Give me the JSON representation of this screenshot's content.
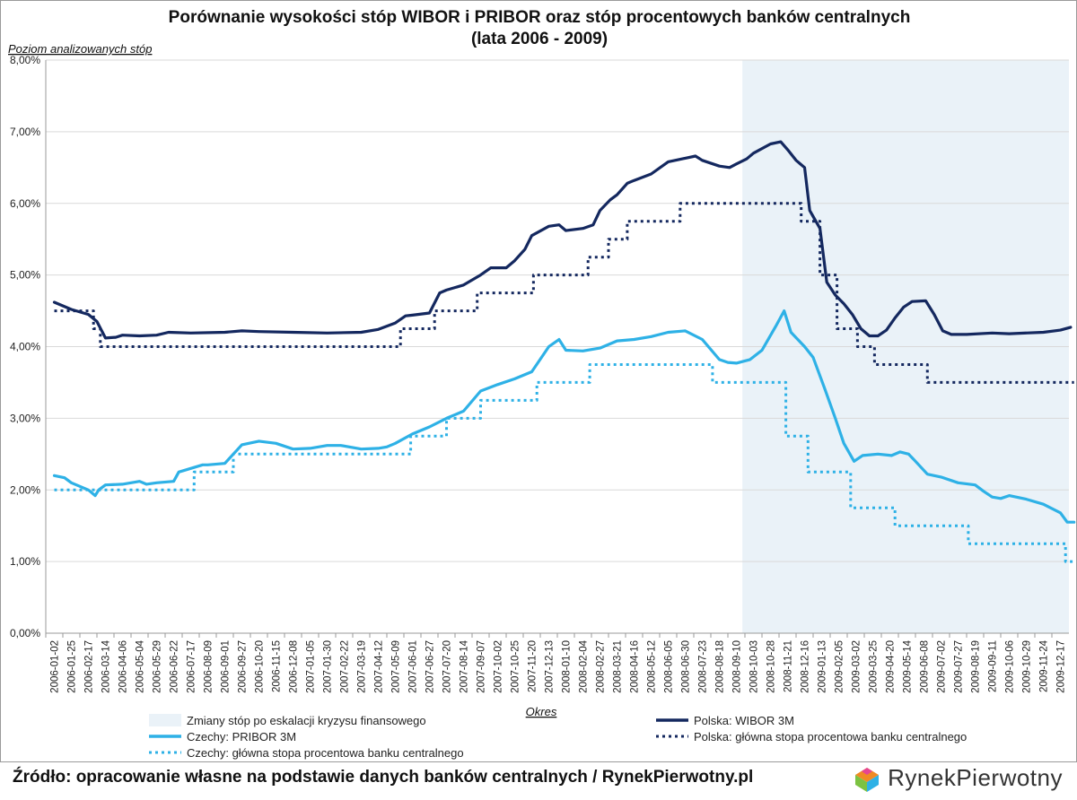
{
  "colors": {
    "wibor": "#14285f",
    "pribor": "#2eb1e6",
    "crisis": "#eaf2f8",
    "grid": "#d9d9d9",
    "axis": "#9a9a9a"
  },
  "chart_data": {
    "type": "line",
    "title": [
      "Porównanie wysokości stóp WIBOR i PRIBOR oraz stóp procentowych banków centralnych",
      "(lata 2006 - 2009)"
    ],
    "ylabel": "Poziom analizowanych stóp",
    "xlabel": "Okres",
    "ylim": [
      0,
      8
    ],
    "yticks": [
      "0,00%",
      "1,00%",
      "2,00%",
      "3,00%",
      "4,00%",
      "5,00%",
      "6,00%",
      "7,00%",
      "8,00%"
    ],
    "categories": [
      "2006-01-02",
      "2006-01-25",
      "2006-02-17",
      "2006-03-14",
      "2006-04-06",
      "2006-05-04",
      "2006-05-29",
      "2006-06-22",
      "2006-07-17",
      "2006-08-09",
      "2006-09-01",
      "2006-09-27",
      "2006-10-20",
      "2006-11-15",
      "2006-12-08",
      "2007-01-05",
      "2007-01-30",
      "2007-02-22",
      "2007-03-19",
      "2007-04-12",
      "2007-05-09",
      "2007-06-01",
      "2007-06-27",
      "2007-07-20",
      "2007-08-14",
      "2007-09-07",
      "2007-10-02",
      "2007-10-25",
      "2007-11-20",
      "2007-12-13",
      "2008-01-10",
      "2008-02-04",
      "2008-02-27",
      "2008-03-21",
      "2008-04-16",
      "2008-05-12",
      "2008-06-05",
      "2008-06-30",
      "2008-07-23",
      "2008-08-18",
      "2008-09-10",
      "2008-10-03",
      "2008-10-28",
      "2008-11-21",
      "2008-12-16",
      "2009-01-13",
      "2009-02-05",
      "2009-03-02",
      "2009-03-25",
      "2009-04-20",
      "2009-05-14",
      "2009-06-08",
      "2009-07-02",
      "2009-07-27",
      "2009-08-19",
      "2009-09-11",
      "2009-10-06",
      "2009-10-29",
      "2009-11-24",
      "2009-12-17"
    ],
    "shaded_region": {
      "label": "Zmiany stóp po eskalacji kryzysu finansowego",
      "from": "2008-09-15",
      "to": "2009-12-31"
    },
    "series": [
      {
        "name": "Polska: WIBOR 3M",
        "style": "solid",
        "color": "wibor",
        "points": [
          [
            0,
            4.62
          ],
          [
            1,
            4.52
          ],
          [
            2,
            4.45
          ],
          [
            2.5,
            4.35
          ],
          [
            3,
            4.12
          ],
          [
            3.6,
            4.13
          ],
          [
            4,
            4.16
          ],
          [
            5,
            4.15
          ],
          [
            6,
            4.16
          ],
          [
            6.7,
            4.2
          ],
          [
            8,
            4.19
          ],
          [
            10,
            4.2
          ],
          [
            11,
            4.22
          ],
          [
            12,
            4.21
          ],
          [
            14,
            4.2
          ],
          [
            16,
            4.19
          ],
          [
            18,
            4.2
          ],
          [
            19,
            4.24
          ],
          [
            20,
            4.33
          ],
          [
            20.6,
            4.43
          ],
          [
            21,
            4.44
          ],
          [
            22,
            4.47
          ],
          [
            22.6,
            4.75
          ],
          [
            23,
            4.79
          ],
          [
            24,
            4.86
          ],
          [
            25,
            5.0
          ],
          [
            25.6,
            5.1
          ],
          [
            26,
            5.1
          ],
          [
            26.5,
            5.1
          ],
          [
            27,
            5.2
          ],
          [
            27.6,
            5.36
          ],
          [
            28,
            5.55
          ],
          [
            29,
            5.68
          ],
          [
            29.6,
            5.7
          ],
          [
            30,
            5.62
          ],
          [
            31,
            5.65
          ],
          [
            31.6,
            5.7
          ],
          [
            32,
            5.9
          ],
          [
            32.6,
            6.05
          ],
          [
            33,
            6.12
          ],
          [
            33.6,
            6.28
          ],
          [
            34,
            6.32
          ],
          [
            35,
            6.41
          ],
          [
            36,
            6.58
          ],
          [
            37,
            6.63
          ],
          [
            37.6,
            6.66
          ],
          [
            38,
            6.6
          ],
          [
            39,
            6.52
          ],
          [
            39.6,
            6.5
          ],
          [
            40,
            6.55
          ],
          [
            40.6,
            6.62
          ],
          [
            41,
            6.7
          ],
          [
            42,
            6.83
          ],
          [
            42.6,
            6.86
          ],
          [
            43,
            6.75
          ],
          [
            43.5,
            6.6
          ],
          [
            44,
            6.5
          ],
          [
            44.3,
            5.9
          ],
          [
            44.9,
            5.65
          ],
          [
            45.3,
            4.9
          ],
          [
            45.8,
            4.72
          ],
          [
            46.3,
            4.6
          ],
          [
            46.8,
            4.45
          ],
          [
            47.3,
            4.25
          ],
          [
            47.8,
            4.15
          ],
          [
            48.3,
            4.15
          ],
          [
            48.8,
            4.23
          ],
          [
            49.3,
            4.4
          ],
          [
            49.8,
            4.55
          ],
          [
            50.3,
            4.63
          ],
          [
            51.1,
            4.64
          ],
          [
            51.6,
            4.45
          ],
          [
            52.1,
            4.22
          ],
          [
            52.6,
            4.17
          ],
          [
            53.5,
            4.17
          ],
          [
            55,
            4.19
          ],
          [
            56,
            4.18
          ],
          [
            58,
            4.2
          ],
          [
            59,
            4.23
          ],
          [
            59.6,
            4.27
          ]
        ]
      },
      {
        "name": "Polska: główna stopa procentowa banku centralnego",
        "style": "dotted",
        "color": "wibor",
        "points": [
          [
            0,
            4.5
          ],
          [
            2.3,
            4.5
          ],
          [
            2.3,
            4.25
          ],
          [
            2.7,
            4.25
          ],
          [
            2.7,
            4.0
          ],
          [
            20.3,
            4.0
          ],
          [
            20.3,
            4.25
          ],
          [
            22.3,
            4.25
          ],
          [
            22.3,
            4.5
          ],
          [
            24.8,
            4.5
          ],
          [
            24.8,
            4.75
          ],
          [
            28.1,
            4.75
          ],
          [
            28.1,
            5.0
          ],
          [
            31.3,
            5.0
          ],
          [
            31.3,
            5.25
          ],
          [
            32.5,
            5.25
          ],
          [
            32.5,
            5.5
          ],
          [
            33.6,
            5.5
          ],
          [
            33.6,
            5.75
          ],
          [
            36.7,
            5.75
          ],
          [
            36.7,
            6.0
          ],
          [
            43.8,
            6.0
          ],
          [
            43.8,
            5.75
          ],
          [
            44.9,
            5.75
          ],
          [
            44.9,
            5.0
          ],
          [
            45.9,
            5.0
          ],
          [
            45.9,
            4.25
          ],
          [
            47.1,
            4.25
          ],
          [
            47.1,
            4.0
          ],
          [
            48.1,
            4.0
          ],
          [
            48.1,
            3.75
          ],
          [
            51.2,
            3.75
          ],
          [
            51.2,
            3.5
          ],
          [
            59.8,
            3.5
          ]
        ]
      },
      {
        "name": "Czechy: PRIBOR 3M",
        "style": "solid",
        "color": "pribor",
        "points": [
          [
            0,
            2.2
          ],
          [
            0.6,
            2.17
          ],
          [
            1,
            2.1
          ],
          [
            1.5,
            2.05
          ],
          [
            2,
            2.0
          ],
          [
            2.4,
            1.92
          ],
          [
            2.6,
            2.0
          ],
          [
            3,
            2.07
          ],
          [
            4,
            2.08
          ],
          [
            5,
            2.12
          ],
          [
            5.4,
            2.08
          ],
          [
            6,
            2.1
          ],
          [
            7,
            2.12
          ],
          [
            7.3,
            2.25
          ],
          [
            8,
            2.3
          ],
          [
            8.7,
            2.35
          ],
          [
            9,
            2.35
          ],
          [
            10,
            2.37
          ],
          [
            10.5,
            2.5
          ],
          [
            11,
            2.63
          ],
          [
            12,
            2.68
          ],
          [
            13,
            2.65
          ],
          [
            14,
            2.57
          ],
          [
            15,
            2.58
          ],
          [
            16,
            2.62
          ],
          [
            16.8,
            2.62
          ],
          [
            18,
            2.57
          ],
          [
            19,
            2.58
          ],
          [
            19.5,
            2.6
          ],
          [
            20,
            2.65
          ],
          [
            21,
            2.78
          ],
          [
            22,
            2.88
          ],
          [
            23,
            3.0
          ],
          [
            24,
            3.1
          ],
          [
            25,
            3.38
          ],
          [
            26,
            3.47
          ],
          [
            27,
            3.55
          ],
          [
            28,
            3.65
          ],
          [
            29,
            4.0
          ],
          [
            29.6,
            4.1
          ],
          [
            30,
            3.95
          ],
          [
            31,
            3.94
          ],
          [
            32,
            3.98
          ],
          [
            33,
            4.08
          ],
          [
            34,
            4.1
          ],
          [
            35,
            4.14
          ],
          [
            36,
            4.2
          ],
          [
            37,
            4.22
          ],
          [
            38,
            4.1
          ],
          [
            39,
            3.82
          ],
          [
            39.5,
            3.78
          ],
          [
            40,
            3.77
          ],
          [
            40.8,
            3.82
          ],
          [
            41.5,
            3.95
          ],
          [
            42.3,
            4.28
          ],
          [
            42.8,
            4.5
          ],
          [
            43.2,
            4.2
          ],
          [
            43.6,
            4.1
          ],
          [
            44,
            4.0
          ],
          [
            44.5,
            3.85
          ],
          [
            45.2,
            3.4
          ],
          [
            45.8,
            3.0
          ],
          [
            46.3,
            2.65
          ],
          [
            46.9,
            2.4
          ],
          [
            47.4,
            2.48
          ],
          [
            48.3,
            2.5
          ],
          [
            49.1,
            2.48
          ],
          [
            49.6,
            2.53
          ],
          [
            50.1,
            2.5
          ],
          [
            50.5,
            2.4
          ],
          [
            51.2,
            2.22
          ],
          [
            52,
            2.18
          ],
          [
            53,
            2.1
          ],
          [
            54,
            2.07
          ],
          [
            54.5,
            1.98
          ],
          [
            55,
            1.9
          ],
          [
            55.5,
            1.88
          ],
          [
            56,
            1.92
          ],
          [
            57,
            1.87
          ],
          [
            58,
            1.8
          ],
          [
            59,
            1.68
          ],
          [
            59.4,
            1.55
          ],
          [
            59.8,
            1.55
          ]
        ]
      },
      {
        "name": "Czechy: główna stopa procentowa banku centralnego",
        "style": "dotted",
        "color": "pribor",
        "points": [
          [
            0,
            2.0
          ],
          [
            8.2,
            2.0
          ],
          [
            8.2,
            2.25
          ],
          [
            10.5,
            2.25
          ],
          [
            10.5,
            2.5
          ],
          [
            20.9,
            2.5
          ],
          [
            20.9,
            2.75
          ],
          [
            23,
            2.75
          ],
          [
            23,
            3.0
          ],
          [
            25,
            3.0
          ],
          [
            25,
            3.25
          ],
          [
            28.3,
            3.25
          ],
          [
            28.3,
            3.5
          ],
          [
            30.1,
            3.5
          ],
          [
            30.1,
            3.5
          ],
          [
            31.4,
            3.5
          ],
          [
            31.4,
            3.75
          ],
          [
            38.6,
            3.75
          ],
          [
            38.6,
            3.5
          ],
          [
            42.9,
            3.5
          ],
          [
            42.9,
            2.75
          ],
          [
            44.2,
            2.75
          ],
          [
            44.2,
            2.25
          ],
          [
            46.7,
            2.25
          ],
          [
            46.7,
            1.75
          ],
          [
            49.3,
            1.75
          ],
          [
            49.3,
            1.5
          ],
          [
            53.6,
            1.5
          ],
          [
            53.6,
            1.25
          ],
          [
            59.3,
            1.25
          ],
          [
            59.3,
            1.0
          ],
          [
            59.8,
            1.0
          ]
        ]
      }
    ],
    "legend": [
      {
        "label": "Zmiany stóp po eskalacji kryzysu finansowego",
        "kind": "area"
      },
      {
        "label": "Polska: WIBOR 3M",
        "kind": "solid",
        "color": "wibor"
      },
      {
        "label": "Czechy: PRIBOR 3M",
        "kind": "solid",
        "color": "pribor"
      },
      {
        "label": "Polska: główna stopa procentowa banku centralnego",
        "kind": "dotted",
        "color": "wibor"
      },
      {
        "label": "Czechy: główna stopa procentowa banku centralnego",
        "kind": "dotted",
        "color": "pribor"
      }
    ]
  },
  "footer": {
    "source": "Źródło: opracowanie własne na podstawie danych banków centralnych / RynekPierwotny.pl",
    "logo": "RynekPierwotny"
  }
}
